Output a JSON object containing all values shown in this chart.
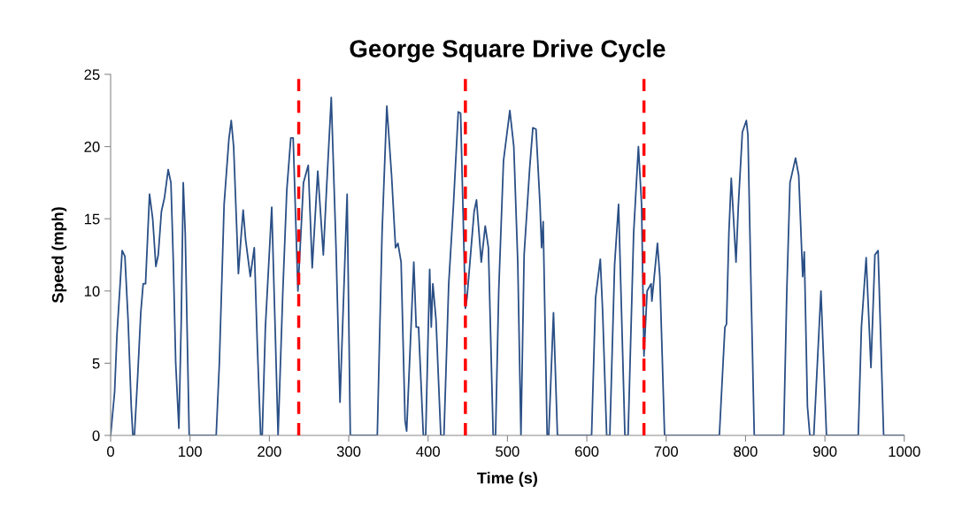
{
  "chart_data": {
    "type": "line",
    "title": "George Square Drive Cycle",
    "xlabel": "Time (s)",
    "ylabel": "Speed (mph)",
    "xlim": [
      0,
      1000
    ],
    "xticks": [
      0,
      100,
      200,
      300,
      400,
      500,
      600,
      700,
      800,
      900,
      1000
    ],
    "ylim": [
      0,
      25
    ],
    "yticks": [
      0,
      5,
      10,
      15,
      20,
      25
    ],
    "grid": false,
    "legend": false,
    "marker": "none",
    "line_style": "solid",
    "series": [
      {
        "color": "#2a4f86",
        "x": [
          0,
          5,
          8,
          12,
          14.5,
          18,
          22,
          26,
          28,
          30,
          34,
          38,
          41,
          44,
          49,
          53,
          57,
          60,
          64,
          68,
          72.5,
          76,
          79,
          82,
          86,
          89,
          91.5,
          94,
          99,
          133,
          137,
          143,
          149,
          152,
          155,
          161,
          164,
          167,
          170,
          176,
          181,
          185,
          189,
          191,
          195,
          203,
          207,
          211,
          217,
          222,
          227,
          230,
          236,
          243,
          249,
          254,
          261,
          268,
          272,
          278,
          284,
          289,
          298,
          302,
          336,
          342,
          348,
          354,
          359,
          362,
          366,
          371,
          373,
          382,
          385,
          388,
          394,
          397,
          402,
          404,
          406,
          410,
          416,
          420,
          426,
          432,
          438,
          441,
          447,
          449,
          458,
          461,
          467,
          472,
          476,
          482,
          485,
          489,
          495,
          503,
          508,
          513,
          517,
          521,
          528,
          532,
          536,
          541,
          543,
          545,
          550,
          552,
          558,
          563,
          606,
          611,
          617,
          620,
          625,
          629,
          635,
          640,
          648,
          652,
          659,
          665,
          669,
          672,
          676,
          681,
          682,
          689,
          692,
          698,
          767,
          774,
          776,
          779,
          782,
          788,
          791,
          796,
          801,
          803,
          807,
          811,
          848,
          852,
          856,
          863,
          867,
          872,
          874,
          878,
          881,
          886,
          895,
          902,
          942,
          946,
          952,
          958,
          963,
          967,
          974,
          1000
        ],
        "values": [
          0,
          3,
          7,
          10.5,
          12.8,
          12.4,
          8,
          2,
          0,
          0,
          4,
          8.5,
          10.5,
          10.5,
          16.7,
          15,
          11.7,
          12.5,
          15.5,
          16.5,
          18.4,
          17.5,
          12,
          5,
          0.5,
          8,
          17.5,
          14,
          0,
          0,
          5,
          16,
          20.5,
          21.8,
          20,
          11.2,
          13.5,
          15.6,
          13.6,
          11,
          13,
          6,
          0,
          0,
          7.5,
          15.8,
          8,
          0,
          10,
          17,
          20.6,
          20.6,
          10,
          17.5,
          18.7,
          11.6,
          18.3,
          12.5,
          17,
          23.4,
          13,
          2.3,
          16.7,
          0,
          0,
          14,
          22.8,
          18,
          13,
          13.3,
          12,
          1,
          0.3,
          12,
          7.5,
          7.5,
          0,
          0,
          11.5,
          7.5,
          10.5,
          8,
          0,
          0,
          10.5,
          16,
          22.4,
          22.3,
          8.8,
          9.5,
          15.5,
          16.3,
          12,
          14.5,
          13,
          0,
          0,
          10,
          19,
          22.5,
          20,
          12,
          0,
          12.5,
          18.5,
          21.3,
          21.2,
          16,
          13,
          14.8,
          0,
          0,
          8.5,
          0,
          0,
          9.5,
          12.2,
          8.5,
          0,
          0,
          11.8,
          16,
          0,
          0,
          14,
          20,
          16,
          5.5,
          10,
          10.5,
          9.3,
          13.3,
          11,
          0,
          0,
          7.5,
          7.7,
          14,
          17.8,
          12,
          16,
          21,
          21.8,
          20.8,
          10,
          0,
          0,
          10,
          17.5,
          19.2,
          18,
          11,
          12.7,
          2,
          0,
          0,
          10,
          0,
          0,
          7.5,
          12.3,
          4.7,
          12.5,
          12.8,
          0,
          0
        ]
      }
    ],
    "ref_lines": [
      {
        "axis": "x",
        "value": 237,
        "color": "#ff0000",
        "line_style": "dashed"
      },
      {
        "axis": "x",
        "value": 447,
        "color": "#ff0000",
        "line_style": "dashed"
      },
      {
        "axis": "x",
        "value": 672,
        "color": "#ff0000",
        "line_style": "dashed"
      }
    ]
  }
}
